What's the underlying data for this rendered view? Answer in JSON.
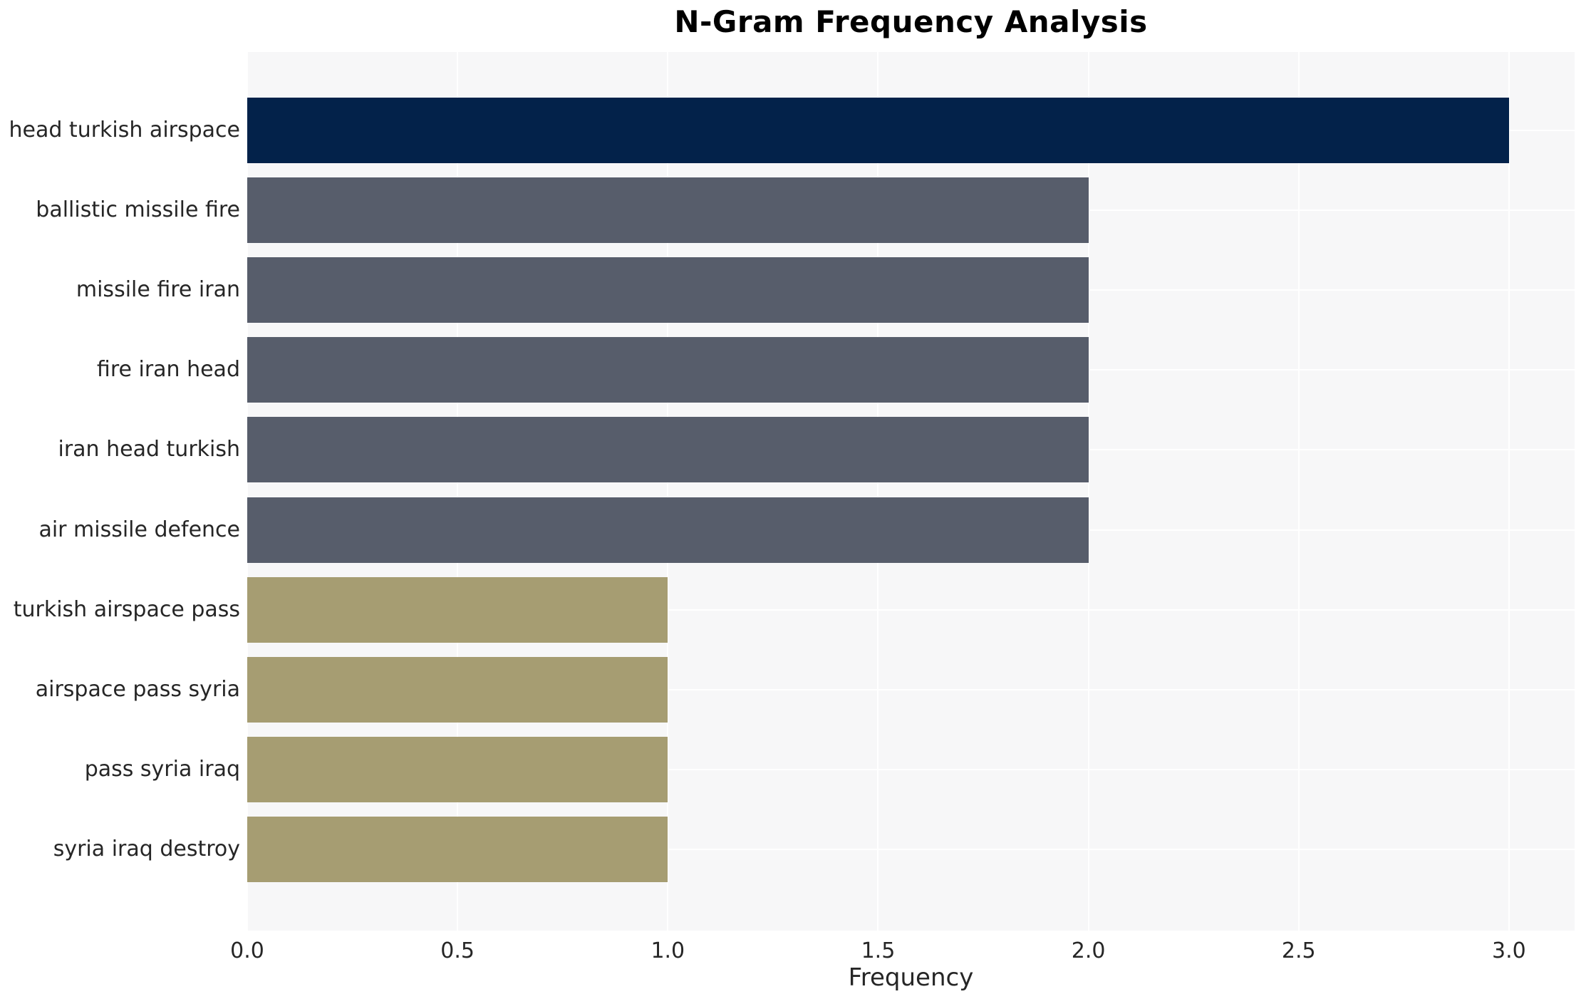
{
  "chart_data": {
    "type": "bar",
    "orientation": "horizontal",
    "title": "N-Gram Frequency Analysis",
    "xlabel": "Frequency",
    "ylabel": "",
    "categories": [
      "head turkish airspace",
      "ballistic missile fire",
      "missile fire iran",
      "fire iran head",
      "iran head turkish",
      "air missile defence",
      "turkish airspace pass",
      "airspace pass syria",
      "pass syria iraq",
      "syria iraq destroy"
    ],
    "values": [
      3,
      2,
      2,
      2,
      2,
      2,
      1,
      1,
      1,
      1
    ],
    "bar_colors": [
      "#03224A",
      "#575D6B",
      "#575D6B",
      "#575D6B",
      "#575D6B",
      "#575D6B",
      "#A69D72",
      "#A69D72",
      "#A69D72",
      "#A69D72"
    ],
    "palette": {
      "frequency_3": "#03224A",
      "frequency_2": "#575D6B",
      "frequency_1": "#A69D72"
    },
    "xlim": [
      0,
      3.156
    ],
    "xticks": {
      "values": [
        0,
        0.5,
        1,
        1.5,
        2,
        2.5,
        3
      ],
      "labels": [
        "0.0",
        "0.5",
        "1.0",
        "1.5",
        "2.0",
        "2.5",
        "3.0"
      ]
    },
    "grid": {
      "show": true,
      "grid_color": "#ffffff",
      "panel_background": "#f7f7f8",
      "figure_background": "#ffffff"
    },
    "legend": "none",
    "text_color": "#262626"
  }
}
